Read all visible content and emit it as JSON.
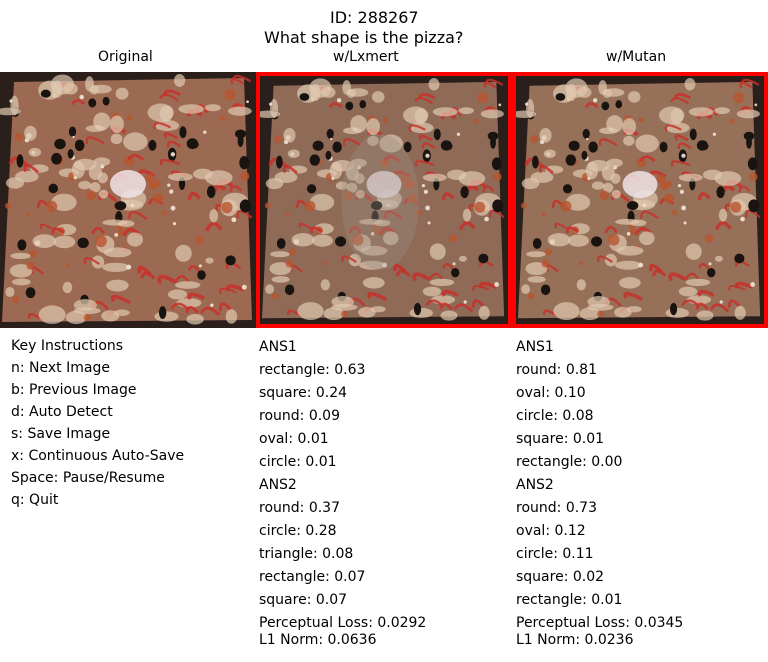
{
  "header": {
    "id_text": "ID: 288267",
    "question": "What shape is the pizza?"
  },
  "panels": {
    "original_label": "Original",
    "lxmert_label": "w/Lxmert",
    "mutan_label": "w/Mutan"
  },
  "instructions": {
    "title": "Key Instructions",
    "items": [
      "n: Next Image",
      "b: Previous Image",
      "d: Auto Detect",
      "s: Save Image",
      "x: Continuous Auto-Save",
      "Space: Pause/Resume",
      "q: Quit"
    ]
  },
  "lxmert": {
    "ans1_title": "ANS1",
    "ans1": [
      "rectangle: 0.63",
      "square: 0.24",
      "round: 0.09",
      "oval: 0.01",
      "circle: 0.01"
    ],
    "ans2_title": "ANS2",
    "ans2": [
      "round: 0.37",
      "circle: 0.28",
      "triangle: 0.08",
      "rectangle: 0.07",
      "square: 0.07"
    ],
    "perceptual_loss": "Perceptual Loss: 0.0292",
    "l1_norm": "L1 Norm: 0.0636"
  },
  "mutan": {
    "ans1_title": "ANS1",
    "ans1": [
      "round: 0.81",
      "oval: 0.10",
      "circle: 0.08",
      "square: 0.01",
      "rectangle: 0.00"
    ],
    "ans2_title": "ANS2",
    "ans2": [
      "round: 0.73",
      "oval: 0.12",
      "circle: 0.11",
      "square: 0.02",
      "rectangle: 0.01"
    ],
    "perceptual_loss": "Perceptual Loss: 0.0345",
    "l1_norm": "L1 Norm: 0.0236"
  },
  "colors": {
    "highlight_border": "#ff0000",
    "background": "#ffffff",
    "text": "#000000"
  }
}
